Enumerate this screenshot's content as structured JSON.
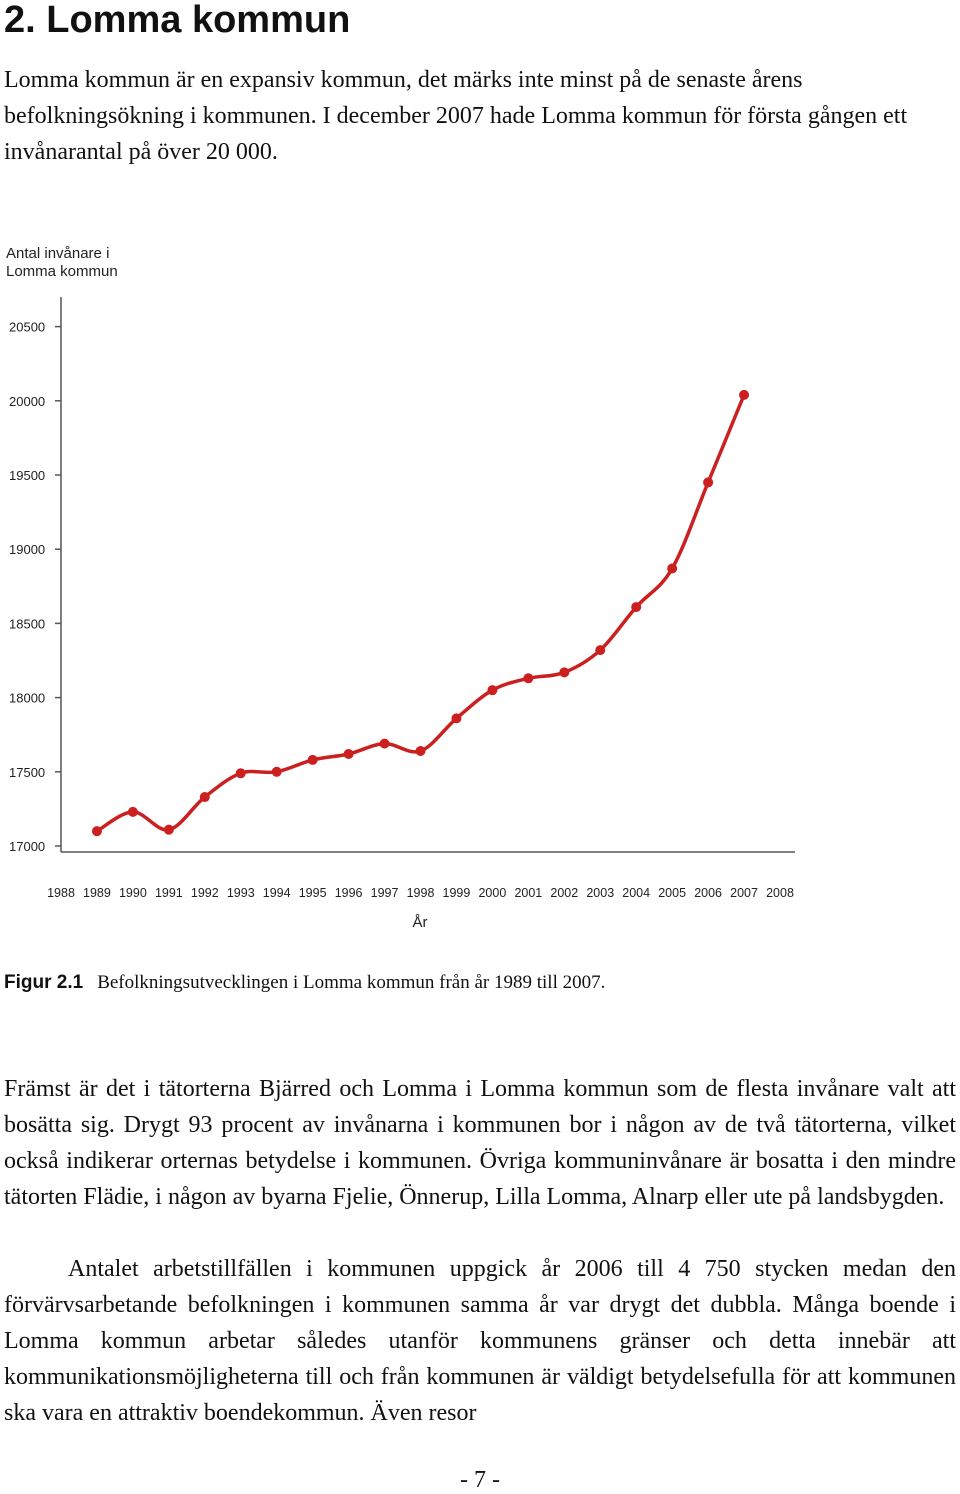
{
  "document": {
    "heading": "2. Lomma kommun",
    "intro": "Lomma kommun är en expansiv kommun, det märks inte minst på de senaste årens befolkningsökning i kommunen. I december 2007 hade Lomma kommun för första gången ett invånarantal på över 20 000.",
    "figure_label": "Figur 2.1",
    "figure_caption": "Befolkningsutvecklingen i Lomma kommun från år 1989 till 2007.",
    "paragraph1": "Främst är det i tätorterna Bjärred och Lomma i Lomma kommun som de flesta invånare valt att bosätta sig. Drygt 93 procent av invånarna i kommunen bor i någon av de två tätorterna, vilket också indikerar orternas betydelse i kommunen. Övriga kommuninvånare är bosatta i den mindre tätorten Flädie, i någon av byarna Fjelie, Önnerup, Lilla Lomma, Alnarp eller ute på landsbygden.",
    "paragraph2": "Antalet arbetstillfällen i kommunen uppgick år 2006 till 4 750 stycken medan den förvärvsarbetande befolkningen i kommunen samma år var drygt det dubbla. Många boende i Lomma kommun arbetar således utanför kommunens gränser och detta innebär att kommunikationsmöjligheterna till och från kommunen är väldigt betydelsefulla för att kommunen ska vara en attraktiv boendekommun. Även resor",
    "page_number": "- 7 -"
  },
  "chart_data": {
    "type": "line",
    "ylabel_line1": "Antal invånare i",
    "ylabel_line2": "Lomma kommun",
    "xlabel": "År",
    "x_ticks": [
      "1988",
      "1989",
      "1990",
      "1991",
      "1992",
      "1993",
      "1994",
      "1995",
      "1996",
      "1997",
      "1998",
      "1999",
      "2000",
      "2001",
      "2002",
      "2003",
      "2004",
      "2005",
      "2006",
      "2007",
      "2008"
    ],
    "y_ticks": [
      "17000",
      "17500",
      "18000",
      "18500",
      "19000",
      "19500",
      "20000",
      "20500"
    ],
    "xlim": [
      1988,
      2008
    ],
    "ylim": [
      17000,
      20500
    ],
    "x": [
      1989,
      1990,
      1991,
      1992,
      1993,
      1994,
      1995,
      1996,
      1997,
      1998,
      1999,
      2000,
      2001,
      2002,
      2003,
      2004,
      2005,
      2006,
      2007
    ],
    "values": [
      17100,
      17230,
      17110,
      17330,
      17490,
      17500,
      17580,
      17620,
      17690,
      17640,
      17860,
      18050,
      18130,
      18170,
      18320,
      18610,
      18870,
      19450,
      20040
    ],
    "line_color": "#cc1f1f",
    "grid": false
  }
}
